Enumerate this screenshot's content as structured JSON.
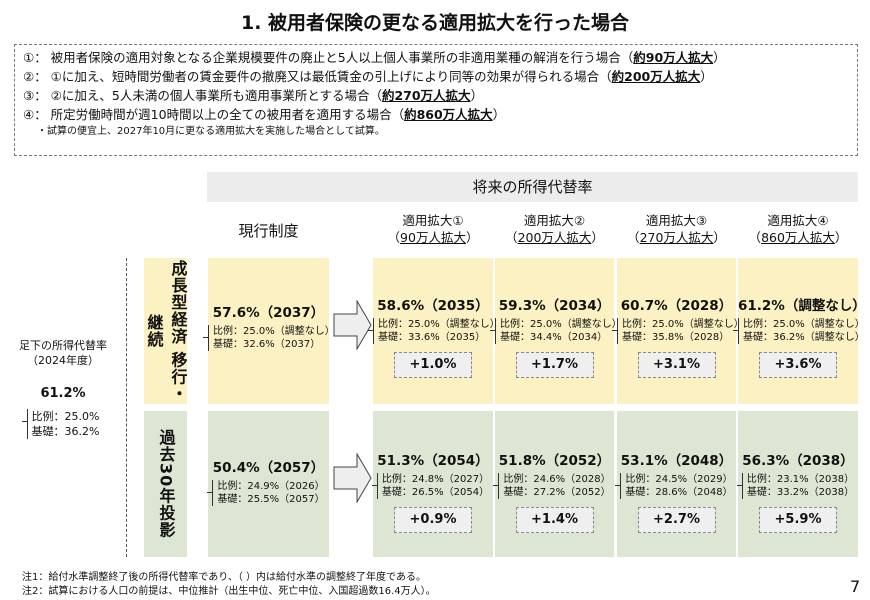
{
  "title": "1. 被用者保険の更なる適用拡大を行った場合",
  "conditions": [
    {
      "prefix": "①： 被用者保険の適用対象となる企業規模要件の廃止と5人以上個人事業所の非適用業種の解消を行う場合（",
      "bold": "約90万人拡大",
      "suffix": "）"
    },
    {
      "prefix": "②： ①に加え、短時間労働者の賃金要件の撤廃又は最低賃金の引上げにより同等の効果が得られる場合（",
      "bold": "約200万人拡大",
      "suffix": "）"
    },
    {
      "prefix": "③： ②に加え、5人未満の個人事業所も適用事業所とする場合（",
      "bold": "約270万人拡大",
      "suffix": "）"
    },
    {
      "prefix": "④： 所定労働時間が週10時間以上の全ての被用者を適用する場合（",
      "bold": "約860万人拡大",
      "suffix": "）"
    }
  ],
  "condition_note": "・試算の便宜上、2027年10月に更なる適用拡大を実施した場合として試算。",
  "band": "将来の所得代替率",
  "current_header": "現行制度",
  "scenario_headers": [
    {
      "name": "適用拡大①",
      "sub": "90万人拡大"
    },
    {
      "name": "適用拡大②",
      "sub": "200万人拡大"
    },
    {
      "name": "適用拡大③",
      "sub": "270万人拡大"
    },
    {
      "name": "適用拡大④",
      "sub": "860万人拡大"
    }
  ],
  "baseline": {
    "label": "足下の所得代替率",
    "year": "（2024年度）",
    "rate": "61.2%",
    "hirei": "比例：25.0%",
    "kiso": "基礎：36.2%"
  },
  "rows": [
    {
      "label": "成長型経済 移行・継続",
      "color": "#fcf1c2",
      "current": {
        "rate": "57.6%（2037）",
        "hirei": "比例：25.0%（調整なし）",
        "kiso": "基礎：32.6%（2037）"
      },
      "scenarios": [
        {
          "rate": "58.6%（2035）",
          "hirei": "比例：25.0%（調整なし）",
          "kiso": "基礎：33.6%（2035）",
          "diff": "+1.0%"
        },
        {
          "rate": "59.3%（2034）",
          "hirei": "比例：25.0%（調整なし）",
          "kiso": "基礎：34.4%（2034）",
          "diff": "+1.7%"
        },
        {
          "rate": "60.7%（2028）",
          "hirei": "比例：25.0%（調整なし）",
          "kiso": "基礎：35.8%（2028）",
          "diff": "+3.1%"
        },
        {
          "rate": "61.2%（調整なし）",
          "hirei": "比例：25.0%（調整なし）",
          "kiso": "基礎：36.2%（調整なし）",
          "diff": "+3.6%"
        }
      ]
    },
    {
      "label": "過去30年投影",
      "color": "#dde6d3",
      "current": {
        "rate": "50.4%（2057）",
        "hirei": "比例：24.9%（2026）",
        "kiso": "基礎：25.5%（2057）"
      },
      "scenarios": [
        {
          "rate": "51.3%（2054）",
          "hirei": "比例：24.8%（2027）",
          "kiso": "基礎：26.5%（2054）",
          "diff": "+0.9%"
        },
        {
          "rate": "51.8%（2052）",
          "hirei": "比例：24.6%（2028）",
          "kiso": "基礎：27.2%（2052）",
          "diff": "+1.4%"
        },
        {
          "rate": "53.1%（2048）",
          "hirei": "比例：24.5%（2029）",
          "kiso": "基礎：28.6%（2048）",
          "diff": "+2.7%"
        },
        {
          "rate": "56.3%（2038）",
          "hirei": "比例：23.1%（2038）",
          "kiso": "基礎：33.2%（2038）",
          "diff": "+5.9%"
        }
      ]
    }
  ],
  "footnotes": [
    "注1：給付水準調整終了後の所得代替率であり、（ ）内は給付水準の調整終了年度である。",
    "注2：試算における人口の前提は、中位推計（出生中位、死亡中位、入国超過数16.4万人）。"
  ],
  "page_number": "7"
}
